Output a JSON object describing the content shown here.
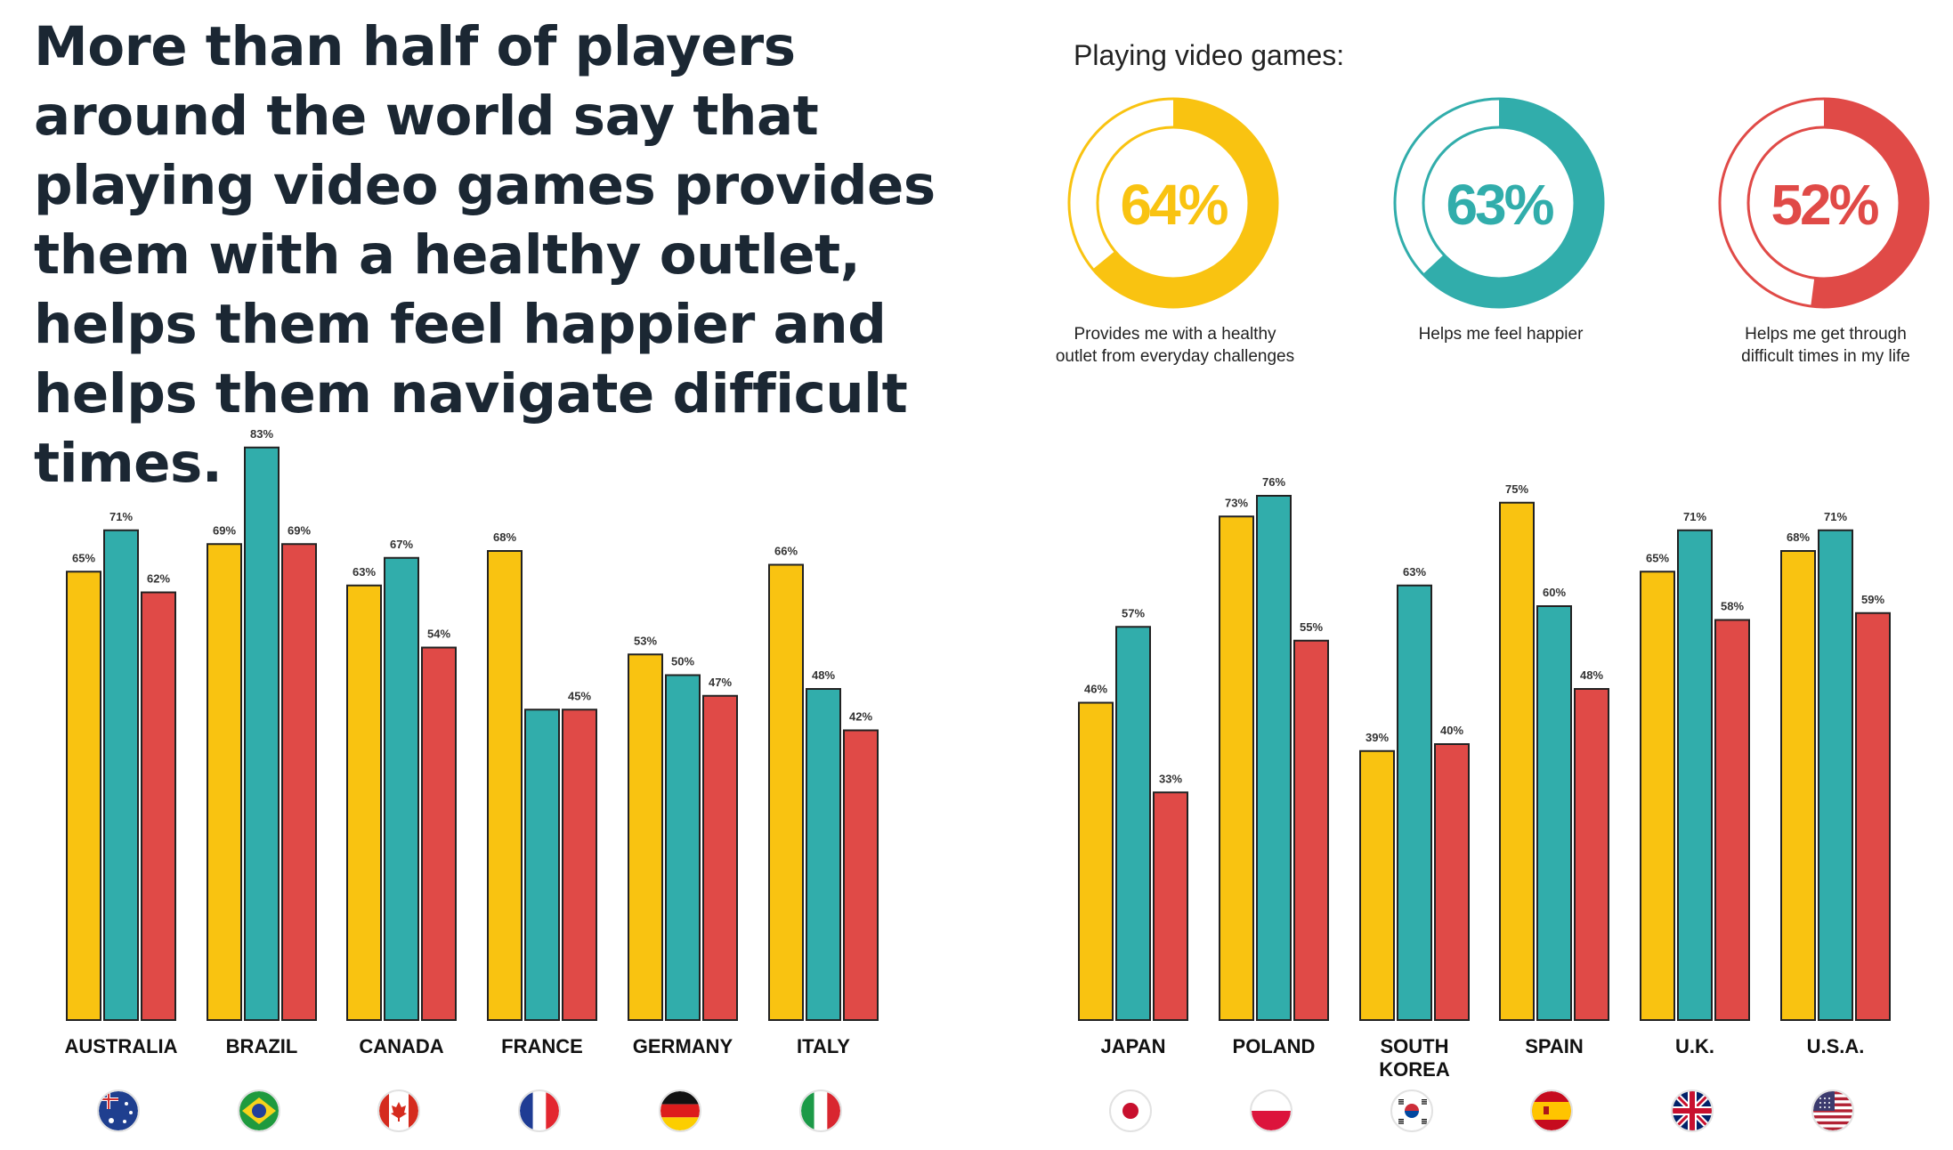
{
  "headline": "More than half of players around the world say that playing video games provides them with a healthy outlet, helps them feel happier and helps them navigate difficult times.",
  "donut_heading": "Playing video games:",
  "colors": {
    "yellow": "#F9C311",
    "teal": "#31ADAB",
    "red": "#E04A47",
    "outline": "#222222"
  },
  "chart_data": [
    {
      "type": "pie",
      "title": "Playing video games:",
      "series": [
        {
          "name": "healthy outlet",
          "value": 64,
          "label": "64%",
          "caption": [
            "Provides me with a healthy",
            "outlet from everyday challenges"
          ],
          "color": "#F9C311"
        },
        {
          "name": "feel happier",
          "value": 63,
          "label": "63%",
          "caption": [
            "Helps me feel happier"
          ],
          "color": "#31ADAB"
        },
        {
          "name": "difficult times",
          "value": 52,
          "label": "52%",
          "caption": [
            "Helps me get through",
            "difficult times in my life"
          ],
          "color": "#E04A47"
        }
      ]
    },
    {
      "type": "bar",
      "categories": [
        "AUSTRALIA",
        "BRAZIL",
        "CANADA",
        "FRANCE",
        "GERMANY",
        "ITALY"
      ],
      "flags": [
        "australia-flag-icon",
        "brazil-flag-icon",
        "canada-flag-icon",
        "france-flag-icon",
        "germany-flag-icon",
        "italy-flag-icon"
      ],
      "ylim": [
        0,
        100
      ],
      "series": [
        {
          "name": "Provides me with a healthy outlet from everyday challenges",
          "color": "#F9C311",
          "values": [
            65,
            69,
            63,
            68,
            53,
            66
          ],
          "labels": [
            "65%",
            "69%",
            "63%",
            "68%",
            "53%",
            "66%"
          ]
        },
        {
          "name": "Helps me feel happier",
          "color": "#31ADAB",
          "values": [
            71,
            83,
            67,
            45,
            50,
            48
          ],
          "labels": [
            "71%",
            "83%",
            "67%",
            "",
            "50%",
            "48%"
          ]
        },
        {
          "name": "Helps me get through difficult times in my life",
          "color": "#E04A47",
          "values": [
            62,
            69,
            54,
            45,
            47,
            42
          ],
          "labels": [
            "62%",
            "69%",
            "54%",
            "45%",
            "47%",
            "42%"
          ]
        }
      ]
    },
    {
      "type": "bar",
      "categories": [
        "JAPAN",
        "POLAND",
        "SOUTH KOREA",
        "SPAIN",
        "U.K.",
        "U.S.A."
      ],
      "flags": [
        "japan-flag-icon",
        "poland-flag-icon",
        "south-korea-flag-icon",
        "spain-flag-icon",
        "uk-flag-icon",
        "usa-flag-icon"
      ],
      "ylim": [
        0,
        100
      ],
      "series": [
        {
          "name": "Provides me with a healthy outlet from everyday challenges",
          "color": "#F9C311",
          "values": [
            46,
            73,
            39,
            75,
            65,
            68
          ],
          "labels": [
            "46%",
            "73%",
            "39%",
            "75%",
            "65%",
            "68%"
          ]
        },
        {
          "name": "Helps me feel happier",
          "color": "#31ADAB",
          "values": [
            57,
            76,
            63,
            60,
            71,
            71
          ],
          "labels": [
            "57%",
            "76%",
            "63%",
            "60%",
            "71%",
            "71%"
          ]
        },
        {
          "name": "Helps me get through difficult times in my life",
          "color": "#E04A47",
          "values": [
            33,
            55,
            40,
            48,
            58,
            59
          ],
          "labels": [
            "33%",
            "55%",
            "40%",
            "48%",
            "58%",
            "59%"
          ]
        }
      ]
    }
  ]
}
